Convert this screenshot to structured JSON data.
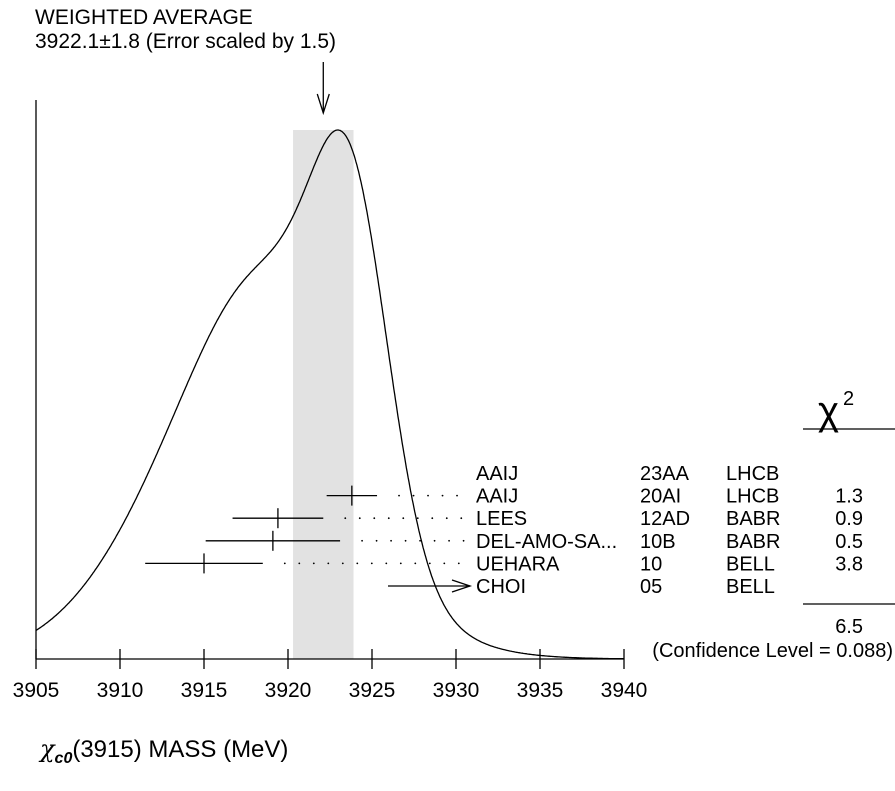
{
  "header": {
    "line1": "WEIGHTED AVERAGE",
    "line2": "3922.1±1.8 (Error scaled by 1.5)"
  },
  "chart_data": {
    "type": "ideogram",
    "xlim": [
      3905,
      3940
    ],
    "x_ticks": [
      "3905",
      "3910",
      "3915",
      "3920",
      "3925",
      "3930",
      "3935",
      "3940"
    ],
    "weighted_average": {
      "value": 3922.1,
      "error": 1.8
    },
    "chi2_header": "χ",
    "chi2_sup": "2",
    "measurements": [
      {
        "author": "AAIJ",
        "ref": "23AA",
        "exp": "LHCB",
        "value": null,
        "error": null,
        "chi2": ""
      },
      {
        "author": "AAIJ",
        "ref": "20AI",
        "exp": "LHCB",
        "value": 3923.8,
        "error": 1.5,
        "chi2": "1.3"
      },
      {
        "author": "LEES",
        "ref": "12AD",
        "exp": "BABR",
        "value": 3919.4,
        "error": 2.7,
        "chi2": "0.9"
      },
      {
        "author": "DEL-AMO-SA...",
        "ref": "10B",
        "exp": "BABR",
        "value": 3919.1,
        "error": 4.0,
        "chi2": "0.5"
      },
      {
        "author": "UEHARA",
        "ref": "10",
        "exp": "BELL",
        "value": 3915.0,
        "error": 3.5,
        "chi2": "3.8"
      },
      {
        "author": "CHOI",
        "ref": "05",
        "exp": "BELL",
        "value": null,
        "error": null,
        "chi2": "",
        "arrow": true
      }
    ],
    "chi2_total": "6.5",
    "confidence_level": "(Confidence Level = 0.088)"
  },
  "x_label": {
    "symbol": "χ",
    "subscript": "c0",
    "text": "(3915) MASS (MeV)"
  }
}
